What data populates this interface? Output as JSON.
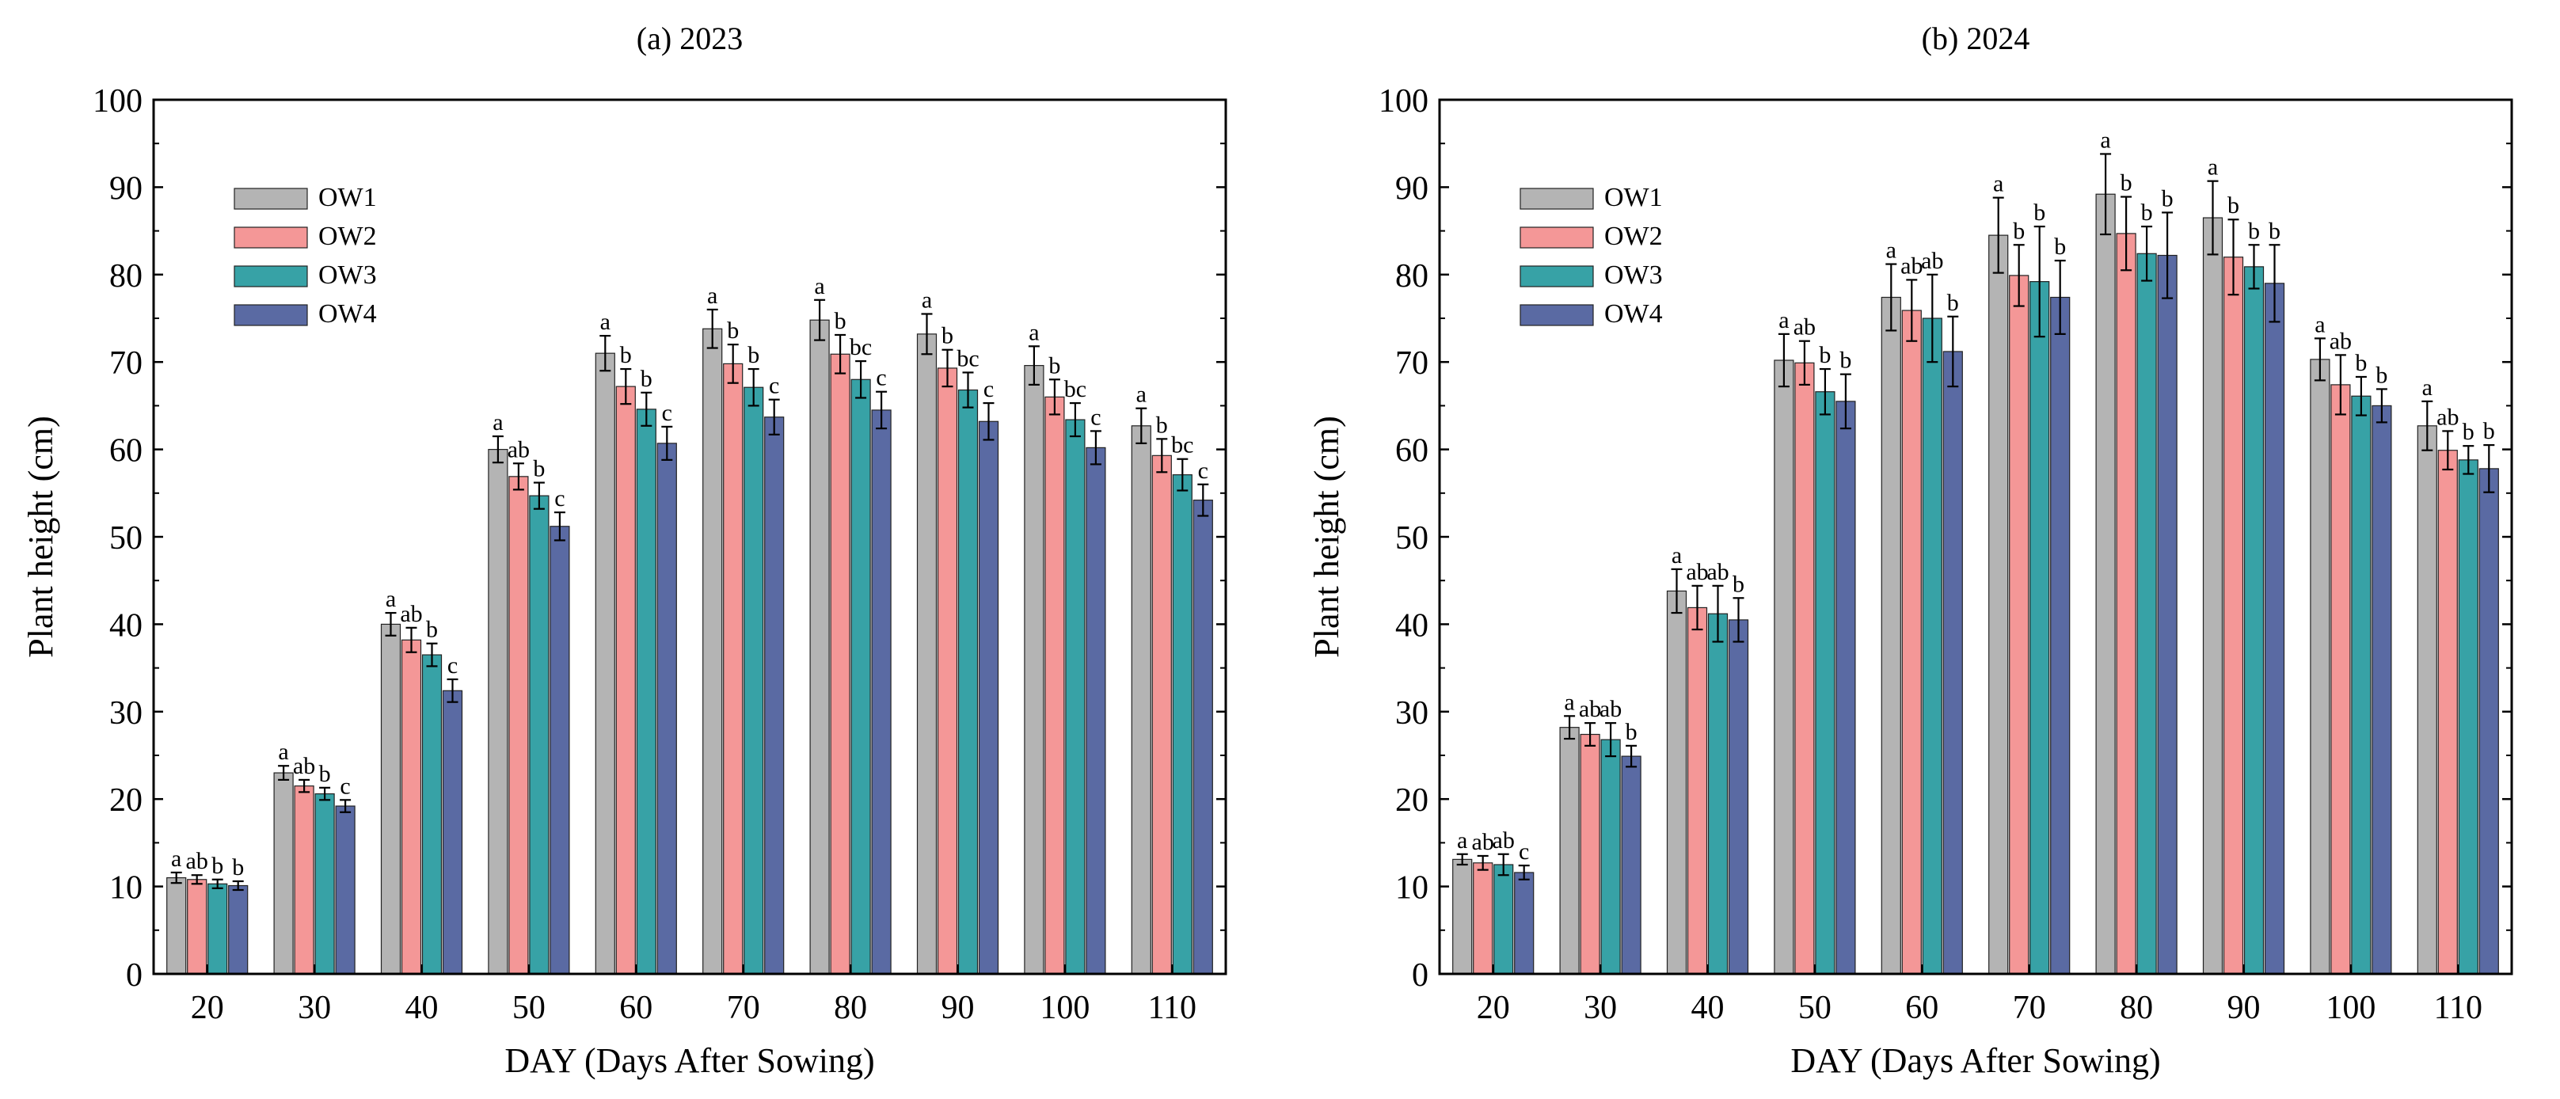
{
  "series_colors": {
    "OW1": "#b4b4b4",
    "OW2": "#f49797",
    "OW3": "#37a2a6",
    "OW4": "#5a6aa3"
  },
  "chart_data": [
    {
      "type": "bar",
      "title": "(a) 2023",
      "xlabel": "DAY (Days After Sowing)",
      "ylabel": "Plant height (cm)",
      "ylim": [
        0,
        100
      ],
      "yticks": [
        0,
        10,
        20,
        30,
        40,
        50,
        60,
        70,
        80,
        90,
        100
      ],
      "legend_position": "top-left",
      "categories": [
        "20",
        "30",
        "40",
        "50",
        "60",
        "70",
        "80",
        "90",
        "100",
        "110"
      ],
      "series": [
        {
          "name": "OW1",
          "values": [
            11.0,
            23.0,
            40.0,
            60.0,
            71.0,
            73.8,
            74.8,
            73.2,
            69.6,
            62.7
          ],
          "errors": [
            0.6,
            0.8,
            1.3,
            1.5,
            2.0,
            2.2,
            2.3,
            2.3,
            2.2,
            2.0
          ],
          "labels": [
            "a",
            "a",
            "a",
            "a",
            "a",
            "a",
            "a",
            "a",
            "a",
            "a"
          ]
        },
        {
          "name": "OW2",
          "values": [
            10.8,
            21.5,
            38.2,
            56.9,
            67.2,
            69.8,
            70.9,
            69.3,
            66.0,
            59.3
          ],
          "errors": [
            0.5,
            0.7,
            1.4,
            1.5,
            2.0,
            2.2,
            2.2,
            2.1,
            2.0,
            1.9
          ],
          "labels": [
            "ab",
            "ab",
            "ab",
            "ab",
            "b",
            "b",
            "b",
            "b",
            "b",
            "b"
          ]
        },
        {
          "name": "OW3",
          "values": [
            10.3,
            20.6,
            36.5,
            54.7,
            64.6,
            67.1,
            68.0,
            66.8,
            63.4,
            57.1
          ],
          "errors": [
            0.5,
            0.7,
            1.3,
            1.5,
            1.9,
            2.1,
            2.1,
            2.0,
            1.9,
            1.8
          ],
          "labels": [
            "b",
            "b",
            "b",
            "b",
            "b",
            "b",
            "bc",
            "bc",
            "bc",
            "bc"
          ]
        },
        {
          "name": "OW4",
          "values": [
            10.1,
            19.2,
            32.4,
            51.2,
            60.7,
            63.7,
            64.5,
            63.2,
            60.2,
            54.2
          ],
          "errors": [
            0.5,
            0.7,
            1.3,
            1.6,
            1.9,
            2.0,
            2.1,
            2.1,
            1.9,
            1.8
          ],
          "labels": [
            "b",
            "c",
            "c",
            "c",
            "c",
            "c",
            "c",
            "c",
            "c",
            "c"
          ]
        }
      ]
    },
    {
      "type": "bar",
      "title": "(b) 2024",
      "xlabel": "DAY (Days After Sowing)",
      "ylabel": "Plant height (cm)",
      "ylim": [
        0,
        100
      ],
      "yticks": [
        0,
        10,
        20,
        30,
        40,
        50,
        60,
        70,
        80,
        90,
        100
      ],
      "legend_position": "top-left",
      "categories": [
        "20",
        "30",
        "40",
        "50",
        "60",
        "70",
        "80",
        "90",
        "100",
        "110"
      ],
      "series": [
        {
          "name": "OW1",
          "values": [
            13.1,
            28.2,
            43.8,
            70.2,
            77.4,
            84.5,
            89.2,
            86.5,
            70.3,
            62.7
          ],
          "errors": [
            0.6,
            1.3,
            2.5,
            3.0,
            3.8,
            4.3,
            4.6,
            4.2,
            2.4,
            2.8
          ],
          "labels": [
            "a",
            "a",
            "a",
            "a",
            "a",
            "a",
            "a",
            "a",
            "a",
            "a"
          ]
        },
        {
          "name": "OW2",
          "values": [
            12.7,
            27.4,
            41.9,
            69.9,
            75.9,
            79.9,
            84.7,
            82.0,
            67.4,
            59.9
          ],
          "errors": [
            0.8,
            1.3,
            2.5,
            2.5,
            3.5,
            3.5,
            4.2,
            4.3,
            3.4,
            2.2
          ],
          "labels": [
            "ab",
            "ab",
            "ab",
            "ab",
            "ab",
            "b",
            "b",
            "b",
            "ab",
            "ab"
          ]
        },
        {
          "name": "OW3",
          "values": [
            12.5,
            26.8,
            41.2,
            66.6,
            75.0,
            79.2,
            82.4,
            80.9,
            66.1,
            58.8
          ],
          "errors": [
            1.2,
            1.9,
            3.2,
            2.6,
            5.0,
            6.3,
            3.1,
            2.5,
            2.2,
            1.6
          ],
          "labels": [
            "ab",
            "ab",
            "ab",
            "b",
            "ab",
            "b",
            "b",
            "b",
            "b",
            "b"
          ]
        },
        {
          "name": "OW4",
          "values": [
            11.6,
            24.9,
            40.5,
            65.5,
            71.2,
            77.4,
            82.2,
            79.0,
            65.0,
            57.8
          ],
          "errors": [
            0.8,
            1.2,
            2.5,
            3.1,
            4.0,
            4.2,
            4.9,
            4.4,
            1.9,
            2.7
          ],
          "labels": [
            "c",
            "b",
            "b",
            "b",
            "b",
            "b",
            "b",
            "b",
            "b",
            "b"
          ]
        }
      ]
    }
  ]
}
